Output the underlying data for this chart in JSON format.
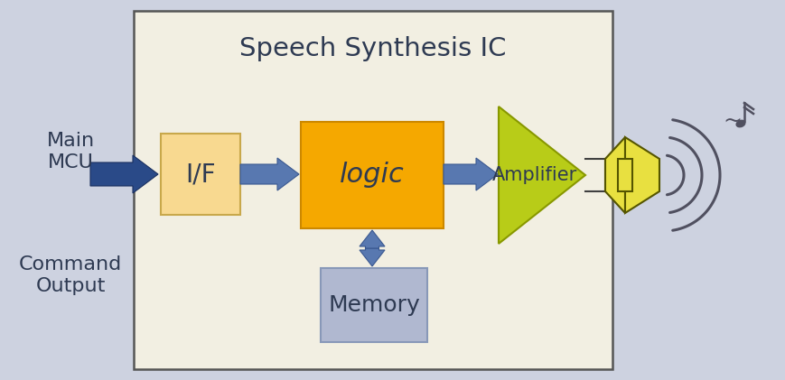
{
  "bg_color": "#cdd2e0",
  "ic_box_color": "#f2efe2",
  "ic_box_edge": "#555555",
  "title": "Speech Synthesis IC",
  "title_color": "#2e3a52",
  "title_fontsize": 21,
  "if_box_color": "#f8d990",
  "if_box_edge": "#c8a84b",
  "logic_box_color": "#f5a800",
  "logic_box_edge": "#cc8800",
  "memory_box_color": "#b0b8d0",
  "memory_box_edge": "#8898b8",
  "amplifier_color": "#b8cc18",
  "amplifier_edge": "#889800",
  "speaker_color": "#e8e040",
  "speaker_edge": "#555500",
  "arrow_color_dark": "#2a4a88",
  "arrow_color_mid": "#5878b0",
  "label_color": "#2e3a52",
  "main_mcu_text": "Main\nMCU",
  "command_output_text": "Command\nOutput",
  "if_text": "I/F",
  "logic_text": "logic",
  "memory_text": "Memory",
  "amplifier_text": "Amplifier",
  "wave_color": "#505060",
  "note_color": "#505060"
}
